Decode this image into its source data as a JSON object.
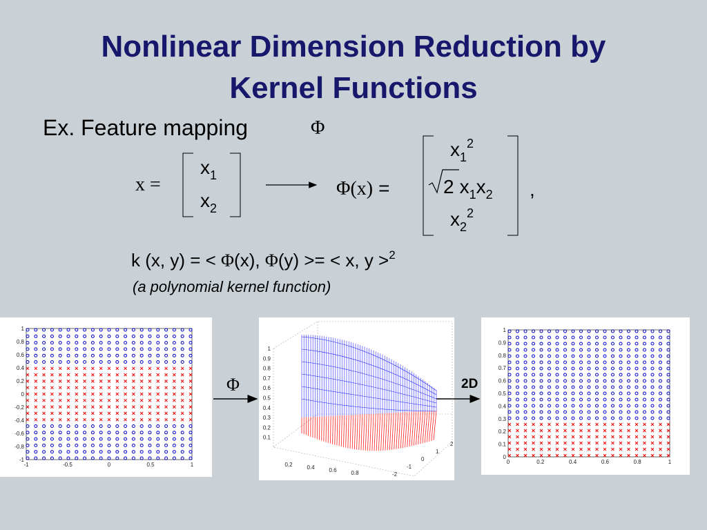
{
  "title_lines": [
    "Nonlinear Dimension Reduction by",
    "Kernel Functions"
  ],
  "example": {
    "label": "Ex. Feature mapping",
    "symbol": "Φ"
  },
  "mapping": {
    "lhs": "x =",
    "input_vector": [
      {
        "base": "x",
        "sub": "1"
      },
      {
        "base": "x",
        "sub": "2"
      }
    ],
    "phi": "Φ",
    "phi_argument": "(x)",
    "equals": "=",
    "output_vector": {
      "first": {
        "base": "x",
        "sub": "1",
        "sup": "2"
      },
      "middle": {
        "radicand": "2",
        "terms": [
          {
            "base": "x",
            "sub": "1"
          },
          {
            "base": "x",
            "sub": "2"
          }
        ]
      },
      "last": {
        "base": "x",
        "sub": "2",
        "sup": "2"
      }
    },
    "comma": ","
  },
  "kernel": {
    "text_a": "k (x, y) = < ",
    "phi_a": "Φ",
    "text_b": "(x), ",
    "phi_b": "Φ",
    "text_c": "(y) >= < x, y >",
    "sup": "2"
  },
  "kernel_note": "(a polynomial kernel function)",
  "arrow_labels": {
    "phi": "Φ",
    "reduction": "2D"
  },
  "plots": {
    "input": {
      "xticks": [
        -1,
        -0.5,
        0,
        0.5,
        1
      ],
      "yticks": [
        -1,
        -0.8,
        -0.6,
        -0.4,
        -0.2,
        0,
        0.2,
        0.4,
        0.6,
        0.8,
        1
      ]
    },
    "feature_space": {
      "xticks": [
        0.2,
        0.4,
        0.6,
        0.8
      ],
      "zticks": [
        -2,
        -1,
        0,
        1,
        2
      ],
      "yticks": [
        0.1,
        0.2,
        0.3,
        0.4,
        0.5,
        0.6,
        0.7,
        0.8,
        0.9,
        1
      ]
    },
    "reduced": {
      "xticks": [
        0,
        0.2,
        0.4,
        0.6,
        0.8,
        1
      ],
      "yticks": [
        0,
        0.1,
        0.2,
        0.3,
        0.4,
        0.5,
        0.6,
        0.7,
        0.8,
        0.9,
        1
      ]
    }
  }
}
